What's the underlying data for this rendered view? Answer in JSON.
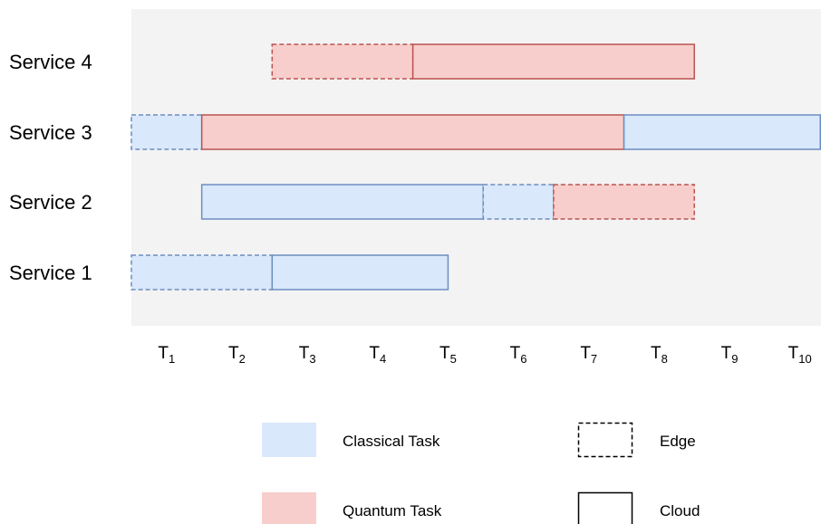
{
  "chart_data": {
    "type": "gantt",
    "rows": [
      "Service 1",
      "Service 2",
      "Service 3",
      "Service 4"
    ],
    "ticks": [
      {
        "base": "T",
        "sub": "1"
      },
      {
        "base": "T",
        "sub": "2"
      },
      {
        "base": "T",
        "sub": "3"
      },
      {
        "base": "T",
        "sub": "4"
      },
      {
        "base": "T",
        "sub": "5"
      },
      {
        "base": "T",
        "sub": "6"
      },
      {
        "base": "T",
        "sub": "7"
      },
      {
        "base": "T",
        "sub": "8"
      },
      {
        "base": "T",
        "sub": "9"
      },
      {
        "base": "T",
        "sub": "10"
      }
    ],
    "xlim": [
      0.5,
      10.3
    ],
    "tasks": [
      {
        "row": "Service 4",
        "start": 2.5,
        "end": 4.5,
        "kind": "quantum",
        "location": "edge"
      },
      {
        "row": "Service 4",
        "start": 4.5,
        "end": 8.5,
        "kind": "quantum",
        "location": "cloud"
      },
      {
        "row": "Service 3",
        "start": 0.5,
        "end": 1.5,
        "kind": "classical",
        "location": "edge"
      },
      {
        "row": "Service 3",
        "start": 1.5,
        "end": 7.5,
        "kind": "quantum",
        "location": "cloud"
      },
      {
        "row": "Service 3",
        "start": 7.5,
        "end": 10.3,
        "kind": "classical",
        "location": "cloud"
      },
      {
        "row": "Service 2",
        "start": 1.5,
        "end": 5.5,
        "kind": "classical",
        "location": "cloud"
      },
      {
        "row": "Service 2",
        "start": 5.5,
        "end": 6.5,
        "kind": "classical",
        "location": "edge"
      },
      {
        "row": "Service 2",
        "start": 6.5,
        "end": 8.5,
        "kind": "quantum",
        "location": "edge"
      },
      {
        "row": "Service 1",
        "start": 0.5,
        "end": 2.5,
        "kind": "classical",
        "location": "edge"
      },
      {
        "row": "Service 1",
        "start": 2.5,
        "end": 5.0,
        "kind": "classical",
        "location": "cloud"
      }
    ],
    "legend": {
      "classical": "Classical Task",
      "quantum": "Quantum Task",
      "edge": "Edge",
      "cloud": "Cloud"
    },
    "colors": {
      "plot_background": "#f3f3f3",
      "classical_fill": "#dae8fc",
      "classical_stroke": "#6c8ebf",
      "quantum_fill": "#f8cecc",
      "quantum_stroke": "#b85450"
    }
  }
}
